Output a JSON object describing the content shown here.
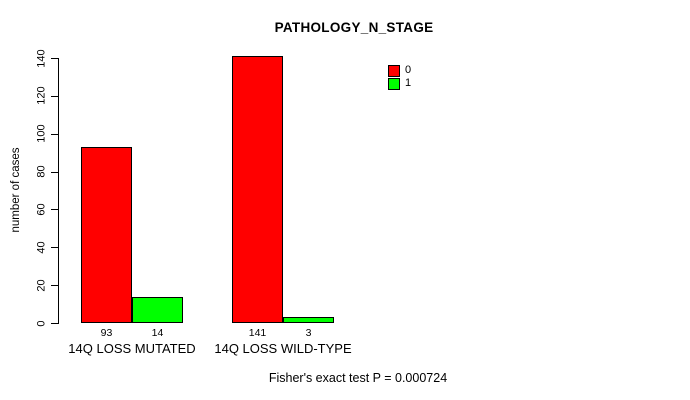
{
  "chart_data": {
    "type": "bar",
    "title": "PATHOLOGY_N_STAGE",
    "categories": [
      "14Q LOSS MUTATED",
      "14Q LOSS WILD-TYPE"
    ],
    "series": [
      {
        "name": "0",
        "color": "#ff0000",
        "values": [
          93,
          141
        ]
      },
      {
        "name": "1",
        "color": "#00ff00",
        "values": [
          14,
          3
        ]
      }
    ],
    "xlabel": "",
    "ylabel": "number of cases",
    "ylim": [
      0,
      140
    ],
    "yticks": [
      0,
      20,
      40,
      60,
      80,
      100,
      120,
      140
    ],
    "grid": false,
    "bar_border_color": "#000000",
    "bar_value_labels_shown": true,
    "legend_position": "top-right",
    "legend_entries": [
      "0",
      "1"
    ],
    "annotation": "Fisher's exact test P = 0.000724"
  }
}
